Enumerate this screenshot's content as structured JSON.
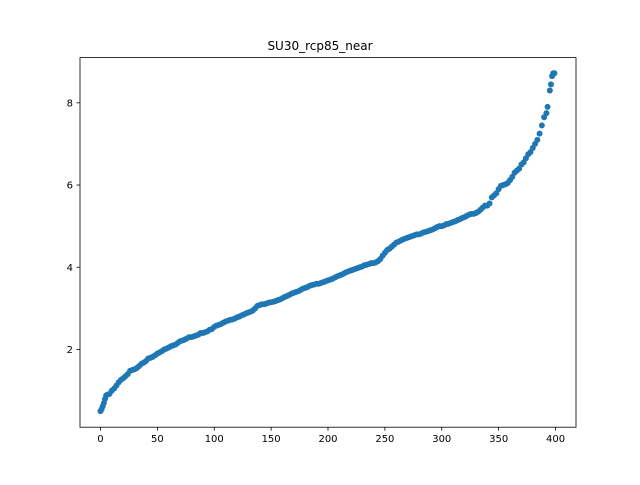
{
  "chart_data": {
    "type": "scatter",
    "title": "SU30_rcp85_near",
    "xlabel": "",
    "ylabel": "",
    "xlim": [
      -18,
      418
    ],
    "ylim": [
      0.11,
      9.1
    ],
    "xticks": [
      0,
      50,
      100,
      150,
      200,
      250,
      300,
      350,
      400
    ],
    "yticks": [
      2,
      4,
      6,
      8
    ],
    "grid": false,
    "legend": "none",
    "marker_color": "#1f77b4",
    "series": [
      {
        "points": [
          [
            0,
            0.5
          ],
          [
            1,
            0.55
          ],
          [
            2,
            0.62
          ],
          [
            3,
            0.7
          ],
          [
            4,
            0.8
          ],
          [
            5,
            0.88
          ],
          [
            6,
            0.9
          ],
          [
            8,
            0.92
          ],
          [
            10,
            1.0
          ],
          [
            12,
            1.05
          ],
          [
            14,
            1.12
          ],
          [
            16,
            1.2
          ],
          [
            18,
            1.26
          ],
          [
            20,
            1.3
          ],
          [
            22,
            1.35
          ],
          [
            24,
            1.4
          ],
          [
            26,
            1.48
          ],
          [
            28,
            1.5
          ],
          [
            30,
            1.52
          ],
          [
            32,
            1.55
          ],
          [
            34,
            1.6
          ],
          [
            36,
            1.65
          ],
          [
            38,
            1.68
          ],
          [
            40,
            1.72
          ],
          [
            42,
            1.78
          ],
          [
            44,
            1.8
          ],
          [
            46,
            1.82
          ],
          [
            48,
            1.86
          ],
          [
            50,
            1.9
          ],
          [
            52,
            1.93
          ],
          [
            54,
            1.96
          ],
          [
            56,
            2.0
          ],
          [
            58,
            2.02
          ],
          [
            60,
            2.05
          ],
          [
            62,
            2.08
          ],
          [
            64,
            2.1
          ],
          [
            66,
            2.12
          ],
          [
            68,
            2.16
          ],
          [
            70,
            2.2
          ],
          [
            72,
            2.22
          ],
          [
            74,
            2.24
          ],
          [
            76,
            2.27
          ],
          [
            78,
            2.3
          ],
          [
            80,
            2.3
          ],
          [
            82,
            2.32
          ],
          [
            84,
            2.34
          ],
          [
            86,
            2.36
          ],
          [
            88,
            2.4
          ],
          [
            90,
            2.4
          ],
          [
            92,
            2.42
          ],
          [
            94,
            2.44
          ],
          [
            96,
            2.48
          ],
          [
            98,
            2.5
          ],
          [
            100,
            2.55
          ],
          [
            102,
            2.58
          ],
          [
            104,
            2.6
          ],
          [
            106,
            2.62
          ],
          [
            108,
            2.65
          ],
          [
            110,
            2.68
          ],
          [
            112,
            2.7
          ],
          [
            114,
            2.72
          ],
          [
            116,
            2.73
          ],
          [
            118,
            2.75
          ],
          [
            120,
            2.78
          ],
          [
            122,
            2.8
          ],
          [
            124,
            2.83
          ],
          [
            126,
            2.85
          ],
          [
            128,
            2.88
          ],
          [
            130,
            2.9
          ],
          [
            132,
            2.92
          ],
          [
            134,
            2.95
          ],
          [
            136,
            3.0
          ],
          [
            138,
            3.06
          ],
          [
            140,
            3.08
          ],
          [
            142,
            3.1
          ],
          [
            144,
            3.1
          ],
          [
            146,
            3.12
          ],
          [
            148,
            3.14
          ],
          [
            150,
            3.15
          ],
          [
            152,
            3.16
          ],
          [
            154,
            3.18
          ],
          [
            156,
            3.2
          ],
          [
            158,
            3.22
          ],
          [
            160,
            3.25
          ],
          [
            162,
            3.28
          ],
          [
            164,
            3.3
          ],
          [
            166,
            3.33
          ],
          [
            168,
            3.36
          ],
          [
            170,
            3.38
          ],
          [
            172,
            3.4
          ],
          [
            174,
            3.42
          ],
          [
            176,
            3.45
          ],
          [
            178,
            3.48
          ],
          [
            180,
            3.5
          ],
          [
            182,
            3.52
          ],
          [
            184,
            3.55
          ],
          [
            186,
            3.57
          ],
          [
            188,
            3.58
          ],
          [
            190,
            3.6
          ],
          [
            192,
            3.6
          ],
          [
            194,
            3.62
          ],
          [
            196,
            3.64
          ],
          [
            198,
            3.66
          ],
          [
            200,
            3.68
          ],
          [
            202,
            3.7
          ],
          [
            204,
            3.72
          ],
          [
            206,
            3.75
          ],
          [
            208,
            3.78
          ],
          [
            210,
            3.8
          ],
          [
            212,
            3.82
          ],
          [
            214,
            3.85
          ],
          [
            216,
            3.88
          ],
          [
            218,
            3.9
          ],
          [
            220,
            3.92
          ],
          [
            222,
            3.94
          ],
          [
            224,
            3.96
          ],
          [
            226,
            3.98
          ],
          [
            228,
            4.0
          ],
          [
            230,
            4.02
          ],
          [
            232,
            4.05
          ],
          [
            234,
            4.06
          ],
          [
            236,
            4.08
          ],
          [
            238,
            4.1
          ],
          [
            240,
            4.1
          ],
          [
            242,
            4.12
          ],
          [
            244,
            4.15
          ],
          [
            246,
            4.2
          ],
          [
            248,
            4.28
          ],
          [
            250,
            4.35
          ],
          [
            252,
            4.42
          ],
          [
            254,
            4.45
          ],
          [
            256,
            4.5
          ],
          [
            258,
            4.55
          ],
          [
            260,
            4.6
          ],
          [
            262,
            4.62
          ],
          [
            264,
            4.65
          ],
          [
            266,
            4.68
          ],
          [
            268,
            4.7
          ],
          [
            270,
            4.72
          ],
          [
            272,
            4.74
          ],
          [
            274,
            4.76
          ],
          [
            276,
            4.78
          ],
          [
            278,
            4.8
          ],
          [
            280,
            4.8
          ],
          [
            282,
            4.82
          ],
          [
            284,
            4.85
          ],
          [
            286,
            4.86
          ],
          [
            288,
            4.88
          ],
          [
            290,
            4.9
          ],
          [
            292,
            4.92
          ],
          [
            294,
            4.95
          ],
          [
            296,
            4.98
          ],
          [
            298,
            5.0
          ],
          [
            300,
            5.0
          ],
          [
            302,
            5.02
          ],
          [
            304,
            5.05
          ],
          [
            306,
            5.06
          ],
          [
            308,
            5.08
          ],
          [
            310,
            5.1
          ],
          [
            312,
            5.12
          ],
          [
            314,
            5.15
          ],
          [
            316,
            5.17
          ],
          [
            318,
            5.2
          ],
          [
            320,
            5.22
          ],
          [
            322,
            5.25
          ],
          [
            324,
            5.28
          ],
          [
            326,
            5.3
          ],
          [
            328,
            5.3
          ],
          [
            330,
            5.32
          ],
          [
            332,
            5.35
          ],
          [
            334,
            5.4
          ],
          [
            336,
            5.45
          ],
          [
            338,
            5.5
          ],
          [
            340,
            5.5
          ],
          [
            342,
            5.55
          ],
          [
            344,
            5.7
          ],
          [
            346,
            5.75
          ],
          [
            348,
            5.8
          ],
          [
            350,
            5.9
          ],
          [
            352,
            5.98
          ],
          [
            354,
            6.0
          ],
          [
            356,
            6.02
          ],
          [
            358,
            6.05
          ],
          [
            360,
            6.12
          ],
          [
            362,
            6.2
          ],
          [
            364,
            6.3
          ],
          [
            366,
            6.35
          ],
          [
            368,
            6.4
          ],
          [
            370,
            6.5
          ],
          [
            372,
            6.55
          ],
          [
            374,
            6.65
          ],
          [
            376,
            6.75
          ],
          [
            378,
            6.8
          ],
          [
            380,
            6.9
          ],
          [
            382,
            7.0
          ],
          [
            384,
            7.1
          ],
          [
            386,
            7.25
          ],
          [
            388,
            7.45
          ],
          [
            390,
            7.65
          ],
          [
            392,
            7.75
          ],
          [
            393,
            7.9
          ],
          [
            395,
            8.3
          ],
          [
            396,
            8.45
          ],
          [
            397,
            8.65
          ],
          [
            398,
            8.72
          ],
          [
            399,
            8.72
          ]
        ]
      }
    ]
  }
}
